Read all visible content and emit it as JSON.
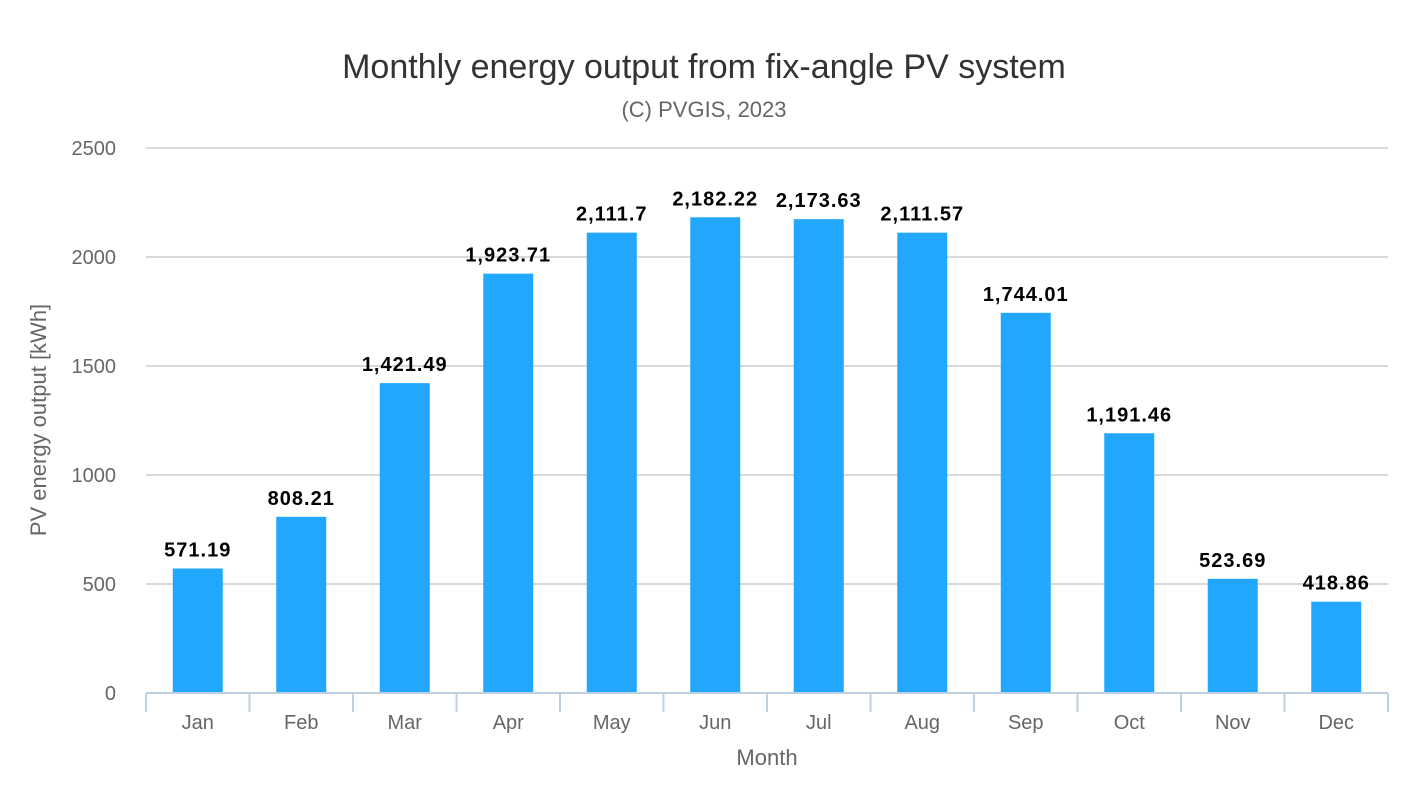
{
  "chart_data": {
    "type": "bar",
    "title": "Monthly energy output from fix-angle PV system",
    "subtitle": "(C) PVGIS, 2023",
    "xlabel": "Month",
    "ylabel": "PV energy output [kWh]",
    "categories": [
      "Jan",
      "Feb",
      "Mar",
      "Apr",
      "May",
      "Jun",
      "Jul",
      "Aug",
      "Sep",
      "Oct",
      "Nov",
      "Dec"
    ],
    "values": [
      571.19,
      808.21,
      1421.49,
      1923.71,
      2111.7,
      2182.22,
      2173.63,
      2111.57,
      1744.01,
      1191.46,
      523.69,
      418.86
    ],
    "data_labels": [
      "571.19",
      "808.21",
      "1,421.49",
      "1,923.71",
      "2,111.7",
      "2,182.22",
      "2,173.63",
      "2,111.57",
      "1,744.01",
      "1,191.46",
      "523.69",
      "418.86"
    ],
    "ylim": [
      0,
      2500
    ],
    "yticks": [
      0,
      500,
      1000,
      1500,
      2000,
      2500
    ],
    "ytick_labels": [
      "0",
      "500",
      "1000",
      "1500",
      "2000",
      "2500"
    ],
    "grid": true,
    "legend": "none",
    "colors": {
      "bar": "#22a7ff",
      "grid": "#d9d9d9",
      "axis": "#c0d0e0",
      "text": "#666666",
      "title": "#333333",
      "label": "#000000"
    }
  }
}
